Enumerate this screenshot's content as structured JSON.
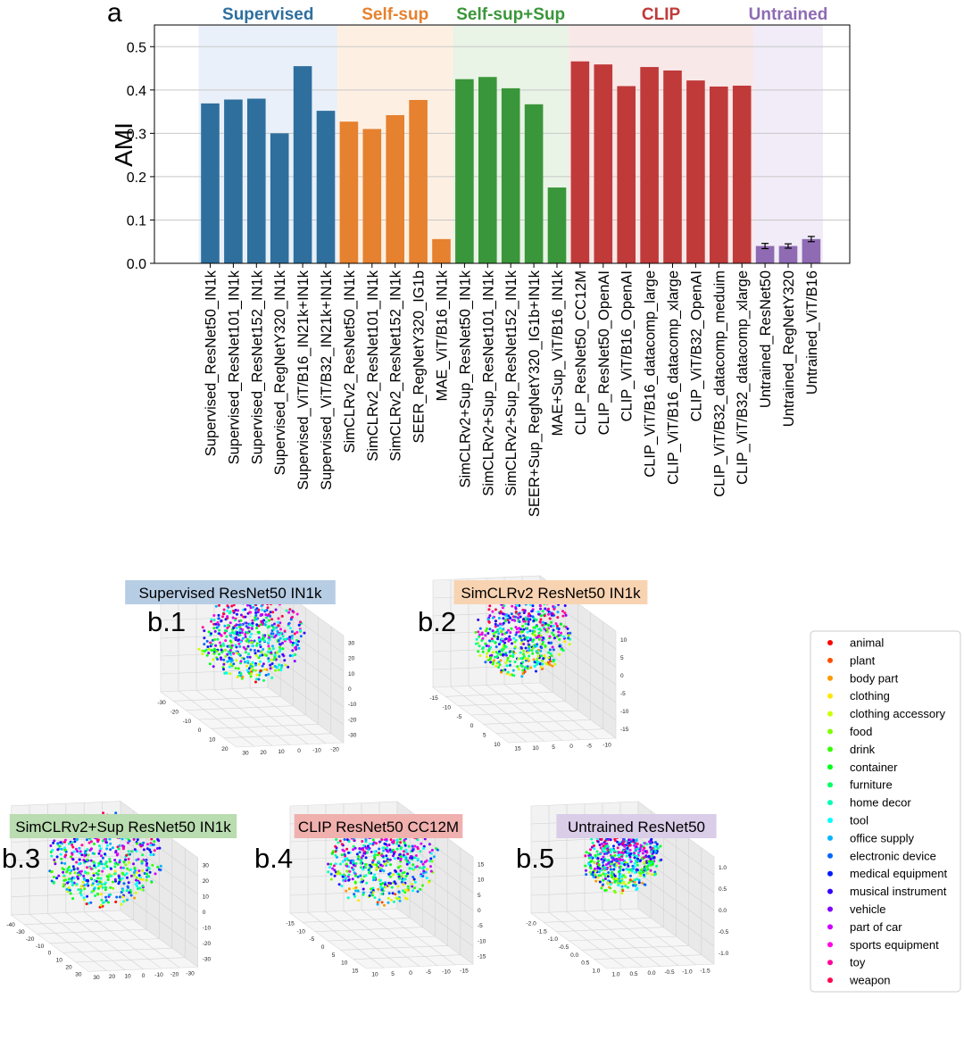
{
  "chart_data": {
    "type": "bar",
    "panel_label": "a",
    "ylabel": "AMI",
    "xlabel": "",
    "ylim": [
      0,
      0.55
    ],
    "yticks": [
      0.0,
      0.1,
      0.2,
      0.3,
      0.4,
      0.5
    ],
    "grid": "horizontal",
    "groups": [
      {
        "name": "Supervised",
        "color": "#2e6f9e",
        "bg": "#eaf0f9",
        "start": 0,
        "end": 5
      },
      {
        "name": "Self-sup",
        "color": "#e6812f",
        "bg": "#fdf0e3",
        "start": 6,
        "end": 10
      },
      {
        "name": "Self-sup+Sup",
        "color": "#3a963a",
        "bg": "#e9f3e6",
        "start": 11,
        "end": 15
      },
      {
        "name": "CLIP",
        "color": "#c03a3a",
        "bg": "#f9e8e8",
        "start": 16,
        "end": 23
      },
      {
        "name": "Untrained",
        "color": "#8e6bb3",
        "bg": "#f1ecf7",
        "start": 24,
        "end": 26
      }
    ],
    "categories": [
      "Supervised_ResNet50_IN1k",
      "Supervised_ResNet101_IN1k",
      "Supervised_ResNet152_IN1k",
      "Supervised_RegNetY320_IN1k",
      "Supervised_ViT/B16_IN21k+IN1k",
      "Supervised_ViT/B32_IN21k+IN1k",
      "SimCLRv2_ResNet50_IN1k",
      "SimCLRv2_ResNet101_IN1k",
      "SimCLRv2_ResNet152_IN1k",
      "SEER_RegNetY320_IG1b",
      "MAE_ViT/B16_IN1k",
      "SimCLRv2+Sup_ResNet50_IN1k",
      "SimCLRv2+Sup_ResNet101_IN1k",
      "SimCLRv2+Sup_ResNet152_IN1k",
      "SEER+Sup_RegNetY320_IG1b+IN1k",
      "MAE+Sup_ViT/B16_IN1k",
      "CLIP_ResNet50_CC12M",
      "CLIP_ResNet50_OpenAI",
      "CLIP_ViT/B16_OpenAI",
      "CLIP_ViT/B16_datacomp_large",
      "CLIP_ViT/B16_datacomp_xlarge",
      "CLIP_ViT/B32_OpenAI",
      "CLIP_ViT/B32_datacomp_meduim",
      "CLIP_ViT/B32_datacomp_xlarge",
      "Untrained_ResNet50",
      "Untrained_RegNetY320",
      "Untrained_ViT/B16"
    ],
    "values": [
      0.369,
      0.378,
      0.38,
      0.3,
      0.455,
      0.352,
      0.327,
      0.31,
      0.342,
      0.377,
      0.056,
      0.425,
      0.43,
      0.404,
      0.367,
      0.175,
      0.466,
      0.459,
      0.409,
      0.453,
      0.445,
      0.422,
      0.408,
      0.41,
      0.04,
      0.04,
      0.056
    ],
    "errors": [
      0,
      0,
      0,
      0,
      0,
      0,
      0,
      0,
      0,
      0,
      0,
      0,
      0,
      0,
      0,
      0,
      0,
      0,
      0,
      0,
      0,
      0,
      0,
      0,
      0.006,
      0.005,
      0.006
    ],
    "scatter_panels": [
      {
        "label": "b.1",
        "title": "Supervised ResNet50 IN1k",
        "title_bg": "#b7cde4",
        "x_ticks": [
          "30",
          "20",
          "10",
          "0",
          "-10",
          "-20"
        ],
        "y_ticks": [
          "-30",
          "-20",
          "-10",
          "0",
          "10",
          "20"
        ],
        "z_ticks": [
          "30",
          "20",
          "10",
          "0",
          "-10",
          "-20",
          "-30"
        ],
        "seed": 11
      },
      {
        "label": "b.2",
        "title": "SimCLRv2 ResNet50 IN1k",
        "title_bg": "#f8d3b2",
        "x_ticks": [
          "15",
          "10",
          "5",
          "0",
          "-5",
          "-10"
        ],
        "y_ticks": [
          "-15",
          "-10",
          "-5",
          "0",
          "5",
          "10"
        ],
        "z_ticks": [
          "10",
          "5",
          "0",
          "-5",
          "-10",
          "-15"
        ],
        "seed": 23
      },
      {
        "label": "b.3",
        "title": "SimCLRv2+Sup ResNet50 IN1k",
        "title_bg": "#b9dcb0",
        "x_ticks": [
          "30",
          "20",
          "10",
          "0",
          "-10",
          "-20",
          "-30"
        ],
        "y_ticks": [
          "-40",
          "-30",
          "-20",
          "-10",
          "0",
          "10",
          "20",
          "30"
        ],
        "z_ticks": [
          "30",
          "20",
          "10",
          "0",
          "-10",
          "-20",
          "-30"
        ],
        "seed": 37
      },
      {
        "label": "b.4",
        "title": "CLIP ResNet50 CC12M",
        "title_bg": "#f0b0ae",
        "x_ticks": [
          "10",
          "5",
          "0",
          "-5",
          "-10",
          "-15"
        ],
        "y_ticks": [
          "-15",
          "-10",
          "-5",
          "0",
          "5",
          "10",
          "15"
        ],
        "z_ticks": [
          "15",
          "10",
          "5",
          "0",
          "-5",
          "-10",
          "-15"
        ],
        "seed": 41
      },
      {
        "label": "b.5",
        "title": "Untrained ResNet50",
        "title_bg": "#d9cde8",
        "x_ticks": [
          "1.0",
          "0.5",
          "0.0",
          "-0.5",
          "-1.0",
          "-1.5"
        ],
        "y_ticks": [
          "-2.0",
          "-1.5",
          "-1.0",
          "-0.5",
          "0.0",
          "0.5",
          "1.0"
        ],
        "z_ticks": [
          "1.0",
          "0.5",
          "0.0",
          "-0.5",
          "-1.0"
        ],
        "seed": 53
      }
    ],
    "legend": {
      "position": "right",
      "entries": [
        {
          "label": "animal",
          "color": "#ff0000"
        },
        {
          "label": "plant",
          "color": "#ff4d00"
        },
        {
          "label": "body part",
          "color": "#ff9900"
        },
        {
          "label": "clothing",
          "color": "#ffe600"
        },
        {
          "label": "clothing accessory",
          "color": "#ccff00"
        },
        {
          "label": "food",
          "color": "#80ff00"
        },
        {
          "label": "drink",
          "color": "#33ff00"
        },
        {
          "label": "container",
          "color": "#00ff1a"
        },
        {
          "label": "furniture",
          "color": "#00ff66"
        },
        {
          "label": "home decor",
          "color": "#00ffb3"
        },
        {
          "label": "tool",
          "color": "#00ffff"
        },
        {
          "label": "office supply",
          "color": "#00b3ff"
        },
        {
          "label": "electronic device",
          "color": "#0066ff"
        },
        {
          "label": "medical equipment",
          "color": "#001aff"
        },
        {
          "label": "musical instrument",
          "color": "#3300ff"
        },
        {
          "label": "vehicle",
          "color": "#8000ff"
        },
        {
          "label": "part of car",
          "color": "#cc00ff"
        },
        {
          "label": "sports equipment",
          "color": "#ff00e6"
        },
        {
          "label": "toy",
          "color": "#ff0099"
        },
        {
          "label": "weapon",
          "color": "#ff004d"
        }
      ]
    }
  }
}
